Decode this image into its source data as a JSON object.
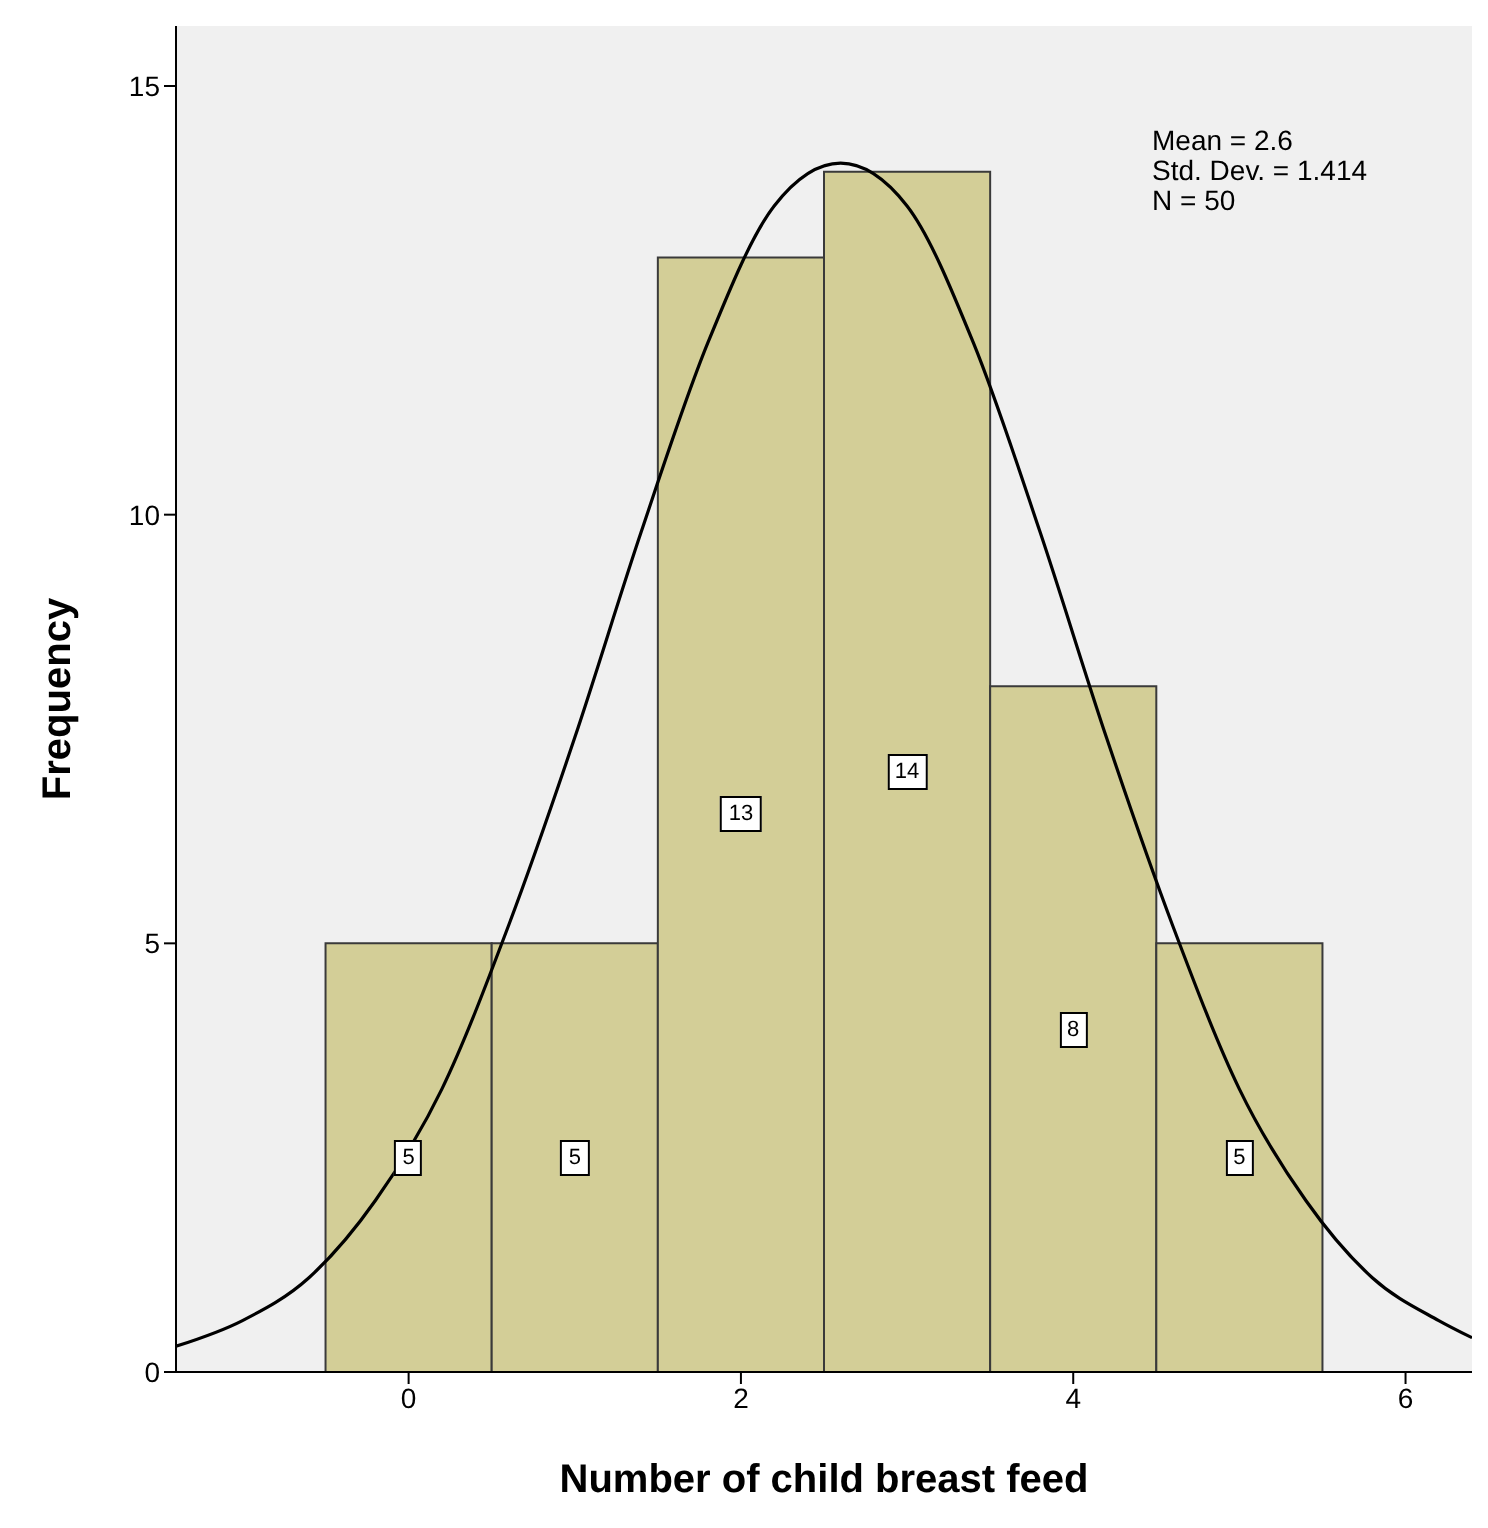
{
  "chart_data": {
    "type": "histogram",
    "xlabel": "Number of child breast feed",
    "ylabel": "Frequency",
    "bins": [
      -0.5,
      0.5,
      1.5,
      2.5,
      3.5,
      4.5,
      5.5
    ],
    "values": [
      5,
      5,
      13,
      14,
      8,
      5
    ],
    "color": "#d3ce97",
    "value_labels": [
      "5",
      "5",
      "13",
      "14",
      "8",
      "5"
    ],
    "xlim": [
      -1.4,
      6.4
    ],
    "xticks": [
      0,
      2,
      4,
      6
    ],
    "ylim": [
      0,
      15.7
    ],
    "yticks": [
      0,
      5,
      10,
      15
    ],
    "annotations": [
      "Mean = 2.6",
      "Std. Dev. = 1.414",
      "N = 50"
    ],
    "series": [
      {
        "type": "line",
        "color": "#000000",
        "x": [
          -1.4,
          -1.0,
          -0.6,
          -0.2,
          0.2,
          0.6,
          1.0,
          1.4,
          1.8,
          2.2,
          2.6,
          3.0,
          3.4,
          3.8,
          4.2,
          4.6,
          5.0,
          5.4,
          5.8,
          6.2,
          6.4
        ],
        "values": [
          0.3,
          0.6,
          1.1,
          2.0,
          3.3,
          5.2,
          7.4,
          9.8,
          12.0,
          13.6,
          14.1,
          13.6,
          12.0,
          9.8,
          7.4,
          5.2,
          3.3,
          2.0,
          1.1,
          0.6,
          0.4
        ]
      }
    ]
  }
}
